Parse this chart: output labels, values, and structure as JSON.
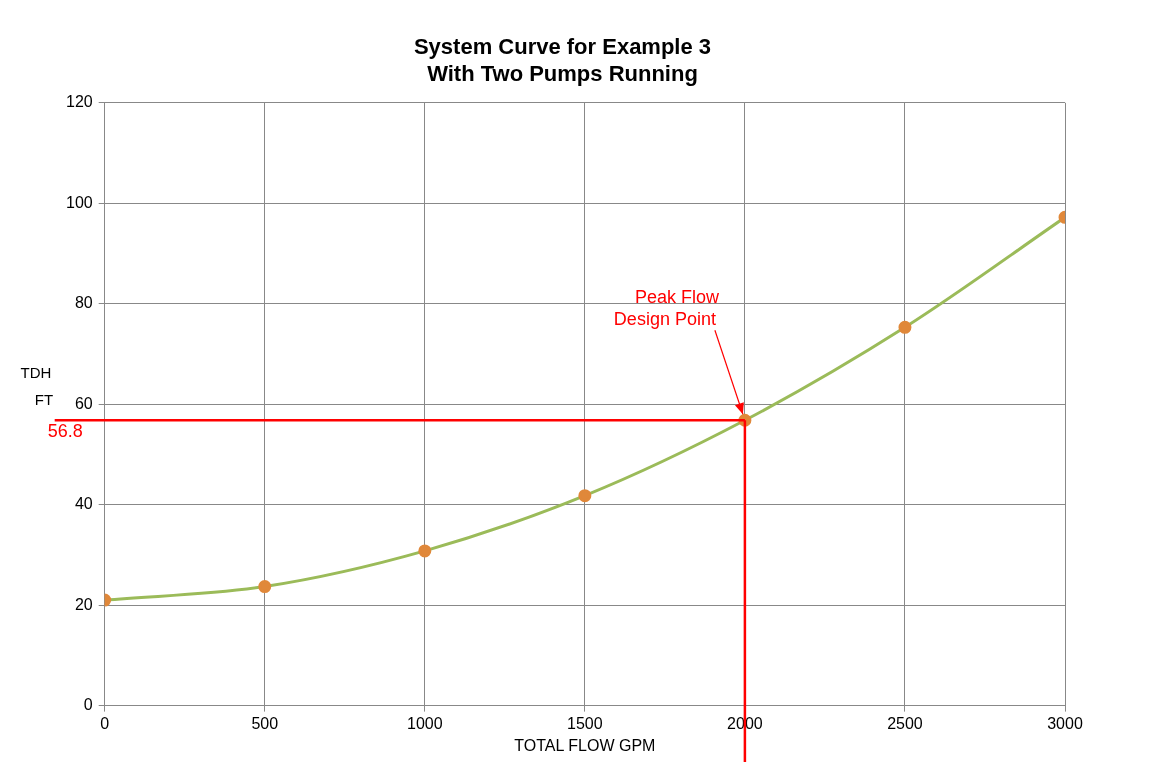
{
  "chart_data": {
    "type": "line",
    "title": "System Curve for Example 3\nWith Two Pumps Running",
    "xlabel": "TOTAL FLOW GPM",
    "ylabel": "TDH\nFT",
    "x": [
      0,
      500,
      1000,
      1500,
      2000,
      2500,
      3000
    ],
    "series": [
      {
        "color": "#9bbb59",
        "colors": [
          "#e0883a",
          "#e0883a",
          "#e0883a",
          "#e0883a",
          "#e0883a",
          "#e0883a",
          "#e0883a"
        ],
        "values": [
          21.0,
          23.7,
          30.8,
          41.8,
          56.8,
          75.3,
          97.2
        ]
      }
    ],
    "marker": "circle",
    "xlim": [
      0,
      3000
    ],
    "xticks": [
      0,
      500,
      1000,
      1500,
      2000,
      2500,
      3000
    ],
    "ylim": [
      0,
      120
    ],
    "yticks": [
      0,
      20,
      40,
      60,
      80,
      100,
      120
    ],
    "grid": true,
    "legend": false,
    "ref_lines": [
      {
        "axis": "y",
        "value": 56.8,
        "label": "56.8",
        "color": "#ff0000"
      },
      {
        "axis": "x",
        "value": 2000,
        "color": "#ff0000"
      }
    ],
    "annotations": [
      {
        "text": "Peak Flow\nDesign Point",
        "x": 2000,
        "y": 56.8
      }
    ]
  }
}
